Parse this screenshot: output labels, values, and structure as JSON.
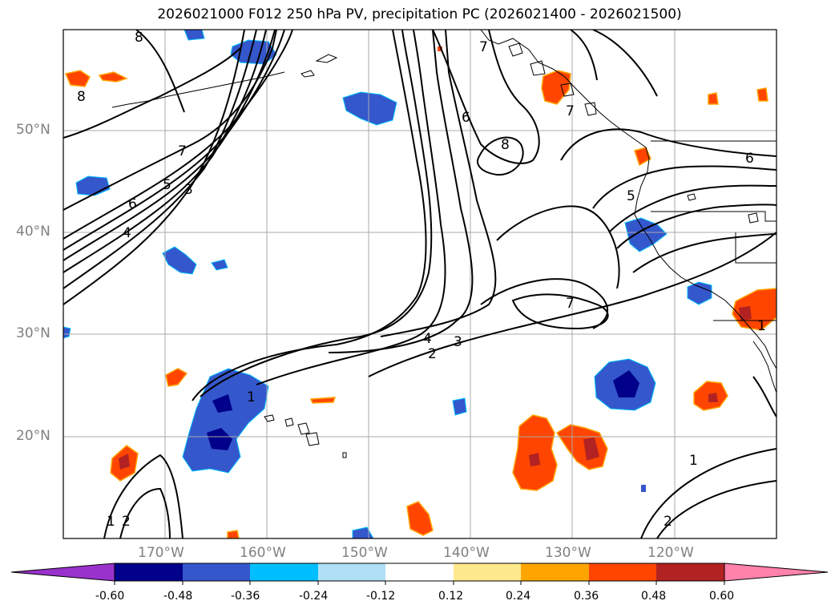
{
  "title": "2026021000 F012 250 hPa PV, precipitation PC (2026021400 - 2026021500)",
  "map": {
    "lon_range": [
      -180,
      -110
    ],
    "lat_range": [
      10,
      60
    ],
    "lat_labels": [
      "50°N",
      "40°N",
      "30°N",
      "20°N"
    ],
    "lon_labels": [
      "170°W",
      "160°W",
      "150°W",
      "140°W",
      "130°W",
      "120°W"
    ],
    "contour_labels": [
      "8",
      "8",
      "7",
      "6",
      "5",
      "4",
      "3",
      "4",
      "3",
      "2",
      "1",
      "7",
      "6",
      "8",
      "7",
      "7",
      "6",
      "5",
      "1",
      "2",
      "1",
      "2",
      "1"
    ],
    "colors": {
      "land": "#000000",
      "contour": "#000000",
      "grid": "#a9a9a9"
    }
  },
  "colorbar": {
    "levels": [
      "-0.60",
      "-0.48",
      "-0.36",
      "-0.24",
      "-0.12",
      "0.12",
      "0.24",
      "0.36",
      "0.48",
      "0.60"
    ],
    "colors": [
      "#9932cc",
      "#00008b",
      "#3557cc",
      "#00bfff",
      "#b0e0f6",
      "#ffffff",
      "#ffe98d",
      "#ffa500",
      "#ff4500",
      "#b22222",
      "#ff82ab"
    ]
  }
}
